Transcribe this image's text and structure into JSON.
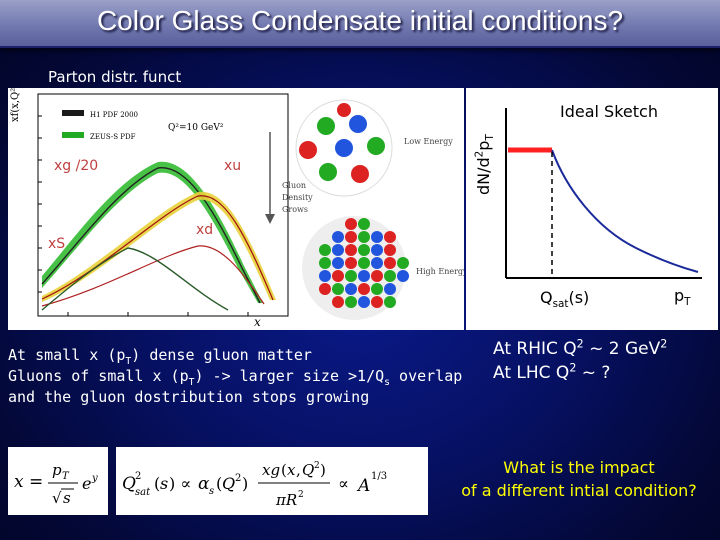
{
  "title": "Color Glass Condensate initial conditions?",
  "parton_label": "Parton distr. funct",
  "pdf_plot": {
    "y_axis_label": "xf(x,Q²)",
    "x_axis_label": "x",
    "legend": [
      "H1 PDF 2000",
      "ZEUS-S PDF"
    ],
    "q2_label": "Q²=10 GeV²",
    "curve_labels": {
      "xg": "xg /20",
      "xu": "xu",
      "xd": "xd",
      "xs": "xS"
    }
  },
  "evolution": {
    "low_energy": "Low Energy",
    "arrow_text_1": "Gluon",
    "arrow_text_2": "Density",
    "arrow_text_3": "Grows",
    "high_energy": "High Energy"
  },
  "sketch": {
    "title": "Ideal Sketch",
    "y_label_main": "dN/d",
    "y_label_sup": "2",
    "y_label_p": "p",
    "y_label_sub": "T",
    "qsat_main": "Q",
    "qsat_sub": "sat",
    "qsat_tail": "(s)",
    "pt_main": "p",
    "pt_sub": "T"
  },
  "text": {
    "line1_a": "At small x (p",
    "line1_sub": "T",
    "line1_b": ") dense gluon matter",
    "line2_a": "Gluons of small x (p",
    "line2_sub": "T",
    "line2_b": ") -> larger size >1/Q",
    "line2_sub2": "s",
    "line2_c": " overlap",
    "line3": "and the gluon dostribution stops growing"
  },
  "rhic": {
    "line1_a": "At RHIC Q",
    "line1_sup": "2",
    "line1_b": " ~ 2 GeV",
    "line1_sup2": "2",
    "line2_a": "At LHC Q",
    "line2_sup": "2",
    "line2_b": " ~ ?"
  },
  "impact": {
    "line1": "What is the impact",
    "line2": "of a different intial condition?"
  },
  "colors": {
    "background": "#061060",
    "title_bar": "#7d83b8",
    "impact_text": "#ffff00",
    "sketch_plateau": "#ff2020"
  }
}
